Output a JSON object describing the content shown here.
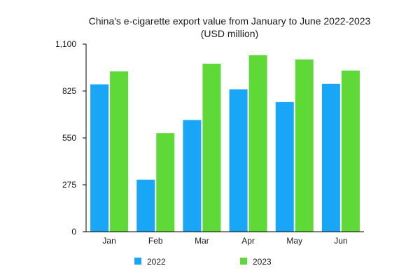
{
  "chart_data": {
    "type": "bar",
    "title_line1": "China's e-cigarette export value from January to June 2022-2023",
    "title_line2": "(USD million)",
    "categories": [
      "Jan",
      "Feb",
      "Mar",
      "Apr",
      "May",
      "Jun"
    ],
    "series": [
      {
        "name": "2022",
        "color": "#1aa6f6",
        "values": [
          864,
          305,
          655,
          835,
          760,
          867
        ]
      },
      {
        "name": "2023",
        "color": "#5ed937",
        "values": [
          940,
          578,
          985,
          1035,
          1010,
          945
        ]
      }
    ],
    "yticks": [
      0,
      275,
      550,
      825,
      1100
    ],
    "ytick_labels": [
      "0",
      "275",
      "550",
      "825",
      "1,100"
    ],
    "ylim": [
      0,
      1100
    ],
    "xlabel": "",
    "ylabel": "",
    "grid": false,
    "legend_position": "bottom"
  }
}
